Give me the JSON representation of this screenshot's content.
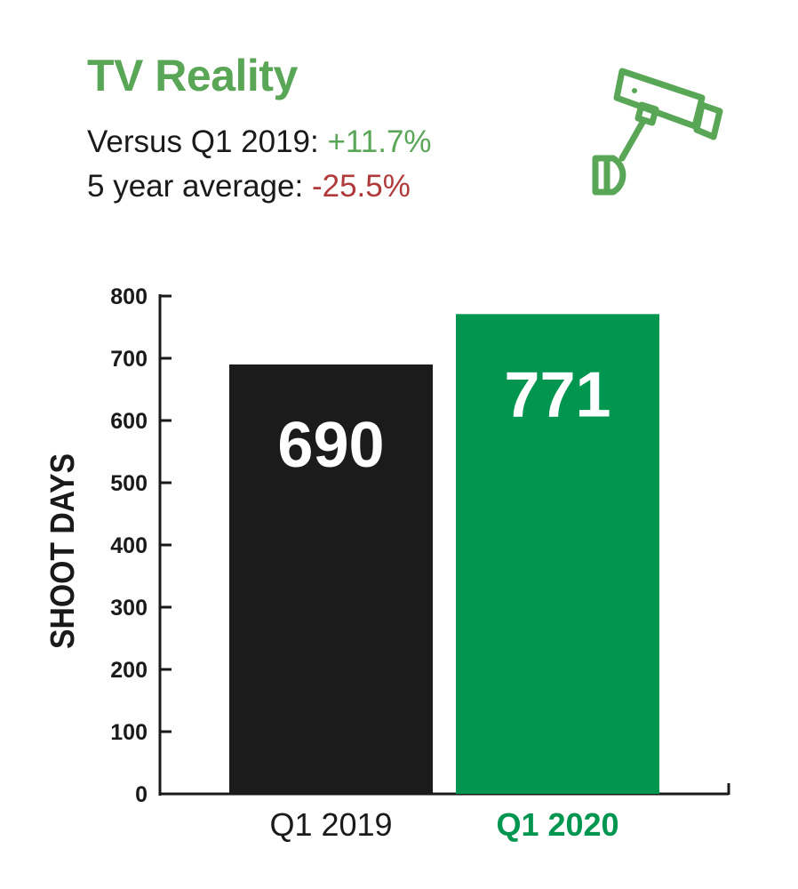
{
  "title": "TV Reality",
  "stats": [
    {
      "label": "Versus Q1 2019:",
      "value": "+11.7%",
      "color": "#5aa657"
    },
    {
      "label": "5 year average:",
      "value": "-25.5%",
      "color": "#b03a3a"
    }
  ],
  "icon": "security-camera-icon",
  "colors": {
    "accent": "#5aa657",
    "bar_2019": "#1b1b1b",
    "bar_2020": "#009650",
    "negative": "#b03a3a"
  },
  "chart_data": {
    "type": "bar",
    "categories": [
      "Q1 2019",
      "Q1 2020"
    ],
    "values": [
      690,
      771
    ],
    "data_labels": [
      "690",
      "771"
    ],
    "category_colors": [
      "#1b1b1b",
      "#009650"
    ],
    "ylabel": "SHOOT DAYS",
    "ylim": [
      0,
      800
    ],
    "yticks": [
      "0",
      "100",
      "200",
      "300",
      "400",
      "500",
      "600",
      "700",
      "800"
    ],
    "grid": false,
    "legend": "none"
  }
}
